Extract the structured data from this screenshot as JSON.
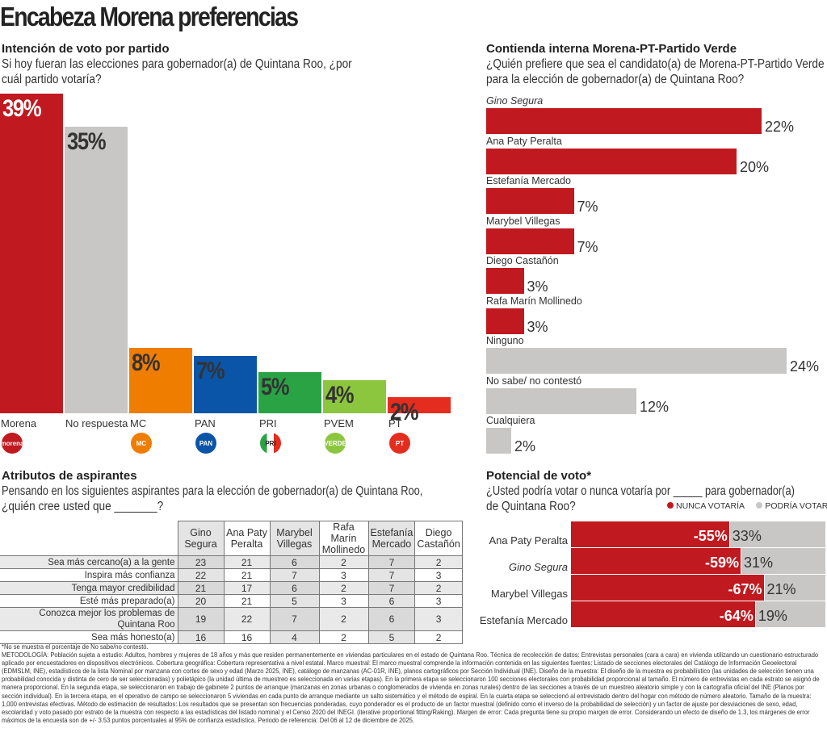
{
  "title": "Encabeza Morena preferencias",
  "colors": {
    "morena": "#c0191f",
    "gray": "#c8c7c5",
    "mc": "#ef7d00",
    "pan": "#0a55a8",
    "pri": "#2aa345",
    "pvem": "#8cc63f",
    "pt": "#e52d1f"
  },
  "chart_data": [
    {
      "type": "bar",
      "title": "Intención de voto por partido",
      "subtitle": "Si hoy fueran las elecciones para gobernador(a) de Quintana Roo, ¿por cuál partido votaría?",
      "categories": [
        "Morena",
        "No respuesta",
        "MC",
        "PAN",
        "PRI",
        "PVEM",
        "PT"
      ],
      "values": [
        39,
        35,
        8,
        7,
        5,
        4,
        2
      ],
      "labels": [
        "39%",
        "35%",
        "8%",
        "7%",
        "5%",
        "4%",
        "2%"
      ],
      "colors": [
        "#c0191f",
        "#c8c7c5",
        "#ef7d00",
        "#0a55a8",
        "#2aa345",
        "#8cc63f",
        "#e52d1f"
      ],
      "logos": [
        "morena",
        "",
        "MC",
        "PAN",
        "PRI",
        "VERDE",
        "PT"
      ]
    },
    {
      "type": "bar",
      "orientation": "horizontal",
      "title": "Contienda interna Morena-PT-Partido Verde",
      "subtitle": "¿Quién prefiere que sea el candidato(a) de Morena-PT-Partido Verde para la elección de gobernador(a) de Quintana Roo?",
      "categories": [
        "Gino Segura",
        "Ana Paty Peralta",
        "Estefanía Mercado",
        "Marybel Villegas",
        "Diego Castañón",
        "Rafa Marín Mollinedo",
        "Ninguno",
        "No sabe/ no contestó",
        "Cualquiera"
      ],
      "values": [
        22,
        20,
        7,
        7,
        3,
        3,
        24,
        12,
        2
      ],
      "labels": [
        "22%",
        "20%",
        "7%",
        "7%",
        "3%",
        "3%",
        "24%",
        "12%",
        "2%"
      ],
      "colors": [
        "#c0191f",
        "#c0191f",
        "#c0191f",
        "#c0191f",
        "#c0191f",
        "#c0191f",
        "#c8c7c5",
        "#c8c7c5",
        "#c8c7c5"
      ]
    },
    {
      "type": "table",
      "title": "Atributos de aspirantes",
      "subtitle_1": "Pensando en los siguientes aspirantes para la elección de gobernador(a) de Quintana Roo,",
      "subtitle_2": "¿quién cree usted que _______?",
      "columns": [
        [
          "Gino",
          "Segura"
        ],
        [
          "Ana Paty",
          "Peralta"
        ],
        [
          "Marybel",
          "Villegas"
        ],
        [
          "Rafa Marín",
          "Mollinedo"
        ],
        [
          "Estefanía",
          "Mercado"
        ],
        [
          "Diego",
          "Castañón"
        ]
      ],
      "rows": [
        {
          "label": "Sea más cercano(a) a la gente",
          "values": [
            23,
            21,
            6,
            2,
            7,
            2
          ]
        },
        {
          "label": "Inspira más confianza",
          "values": [
            22,
            21,
            7,
            3,
            7,
            3
          ]
        },
        {
          "label": "Tenga mayor credibilidad",
          "values": [
            21,
            17,
            6,
            2,
            7,
            2
          ]
        },
        {
          "label": "Esté más preparado(a)",
          "values": [
            20,
            21,
            5,
            3,
            6,
            3
          ]
        },
        {
          "label": "Conozca mejor los problemas de Quintana Roo",
          "values": [
            19,
            22,
            7,
            2,
            6,
            3
          ]
        },
        {
          "label": "Sea más honesto(a)",
          "values": [
            16,
            16,
            4,
            2,
            5,
            2
          ]
        }
      ]
    },
    {
      "type": "bar",
      "orientation": "horizontal",
      "stacked": true,
      "title": "Potencial de voto*",
      "subtitle_1": "¿Usted podría votar o nunca votaría por _____ para gobernador(a)",
      "subtitle_2": "de Quintana Roo?",
      "legend": [
        "NUNCA VOTARÍA",
        "PODRÍA VOTAR"
      ],
      "legend_position": "top-right",
      "categories": [
        "Ana Paty Peralta",
        "Gino Segura",
        "Marybel Villegas",
        "Estefanía Mercado"
      ],
      "series": [
        {
          "name": "NUNCA VOTARÍA",
          "values": [
            -55,
            -59,
            -67,
            -64
          ],
          "labels": [
            "-55%",
            "-59%",
            "-67%",
            "-64%"
          ],
          "color": "#c0191f"
        },
        {
          "name": "PODRÍA VOTAR",
          "values": [
            33,
            31,
            21,
            19
          ],
          "labels": [
            "33%",
            "31%",
            "21%",
            "19%"
          ],
          "color": "#c8c7c5"
        }
      ]
    }
  ],
  "footnote": "*No se muestra el porcentaje de No sabe/no contestó.",
  "methodology": "METODOLOGÍA: Población sujeta a estudio: Adultos, hombres y mujeres de 18 años y más que residen permanentemente en viviendas particulares en el estado de Quintana Roo. Técnica de recolección de datos: Entrevistas personales (cara a cara) en vivienda utilizando un cuestionario estructurado aplicado por encuestadores en dispositivos electrónicos. Cobertura geográfica: Cobertura representativa a nivel estatal. Marco muestral: El marco muestral comprende la información contenida en las siguientes fuentes: Listado de secciones electorales del Catálogo de Información Geoelectoral (EDMSLM, INE), estadísticos de la lista Nominal por manzana con cortes de sexo y edad (Marzo 2025, INE), catálogo de manzanas (AC-01R, INE), planos cartográficos por Sección Individual (INE). Diseño de la muestra: El diseño de la muestra es probabilístico (las unidades de selección tienen una probabilidad conocida y distinta de cero de ser seleccionadas) y polietápico (la unidad última de muestreo es seleccionada en varias etapas). En la primera etapa se seleccionaron 100 secciones electorales con probabilidad proporcional al tamaño. El número de entrevistas en cada estrato se asignó de manera proporcional. En la segunda etapa, se seleccionaron en trabajo de gabinete 2 puntos de arranque (manzanas en zonas urbanas o conglomerados de vivienda en zonas rurales) dentro de las secciones a través de un muestreo aleatorio simple y con la cartografía oficial del INE (Planos por sección individual). En la tercera etapa, en el operativo de campo se seleccionaron 5 viviendas en cada punto de arranque mediante un salto sistemático y el método de espiral. En la cuarta etapa se seleccionó al entrevistado dentro del hogar con método de número aleatorio. Tamaño de la muestra: 1,000 entrevistas efectivas. Método de estimación de resultados: Los resultados que se presentan son frecuencias ponderadas, cuyo ponderador es el producto de un factor muestral (definido como el inverso de la probabilidad de selección) y un factor de ajuste por desviaciones de sexo, edad, escolaridad y voto pasado por estrato de la muestra con respecto a las estadísticas del listado nominal y el Censo 2020 del INEGI. (iterative proportional fitting/Raking). Margen de error: Cada pregunta tiene su propio margen de error. Considerando un efecto de diseño de 1.3, los márgenes de error máximos de la encuesta son de +/- 3.53 puntos porcentuales al 95% de confianza estadística. Periodo de referencia: Del 06 al 12 de diciembre de 2025."
}
